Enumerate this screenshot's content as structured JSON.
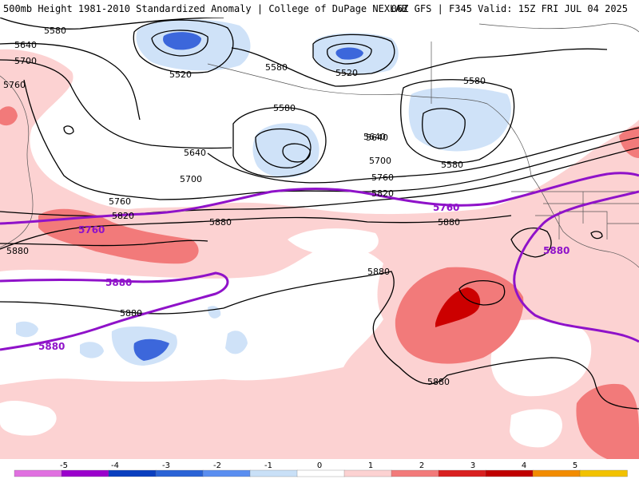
{
  "header": {
    "left": "500mb Height 1981-2010 Standardized Anomaly | College of DuPage NEXLAB",
    "right": "06Z GFS | F345 Valid: 15Z FRI JUL 04 2025"
  },
  "contours": {
    "black": [
      "5580",
      "5640",
      "5700",
      "5760",
      "5520",
      "5580",
      "5520",
      "5580",
      "5580",
      "5640",
      "5640",
      "5580",
      "5700",
      "5760",
      "5820",
      "5820",
      "5880",
      "5880",
      "5880",
      "5880",
      "5880",
      "5880",
      "5640",
      "5700",
      "5760"
    ],
    "purple": [
      "5760",
      "5760",
      "5880",
      "5880",
      "5880"
    ]
  },
  "legend": {
    "ticks": [
      "-5",
      "-4",
      "-3",
      "-2",
      "-1",
      "0",
      "1",
      "2",
      "3",
      "4",
      "5"
    ],
    "colors": [
      "#e070e0",
      "#9b00cc",
      "#0a3fbf",
      "#2a63d6",
      "#5a8ef0",
      "#c9e0f7",
      "#ffffff",
      "#fcd2d2",
      "#f27a7a",
      "#d92020",
      "#c00000",
      "#f28c00",
      "#f2c200"
    ]
  },
  "colors": {
    "height_line": "#000000",
    "ref_line": "#8f12c9",
    "pos_light": "#fcd2d2",
    "pos_med": "#f27a7a",
    "pos_strong": "#cc0000",
    "neg_light": "#cfe2f8",
    "neg_med": "#3c67db"
  }
}
